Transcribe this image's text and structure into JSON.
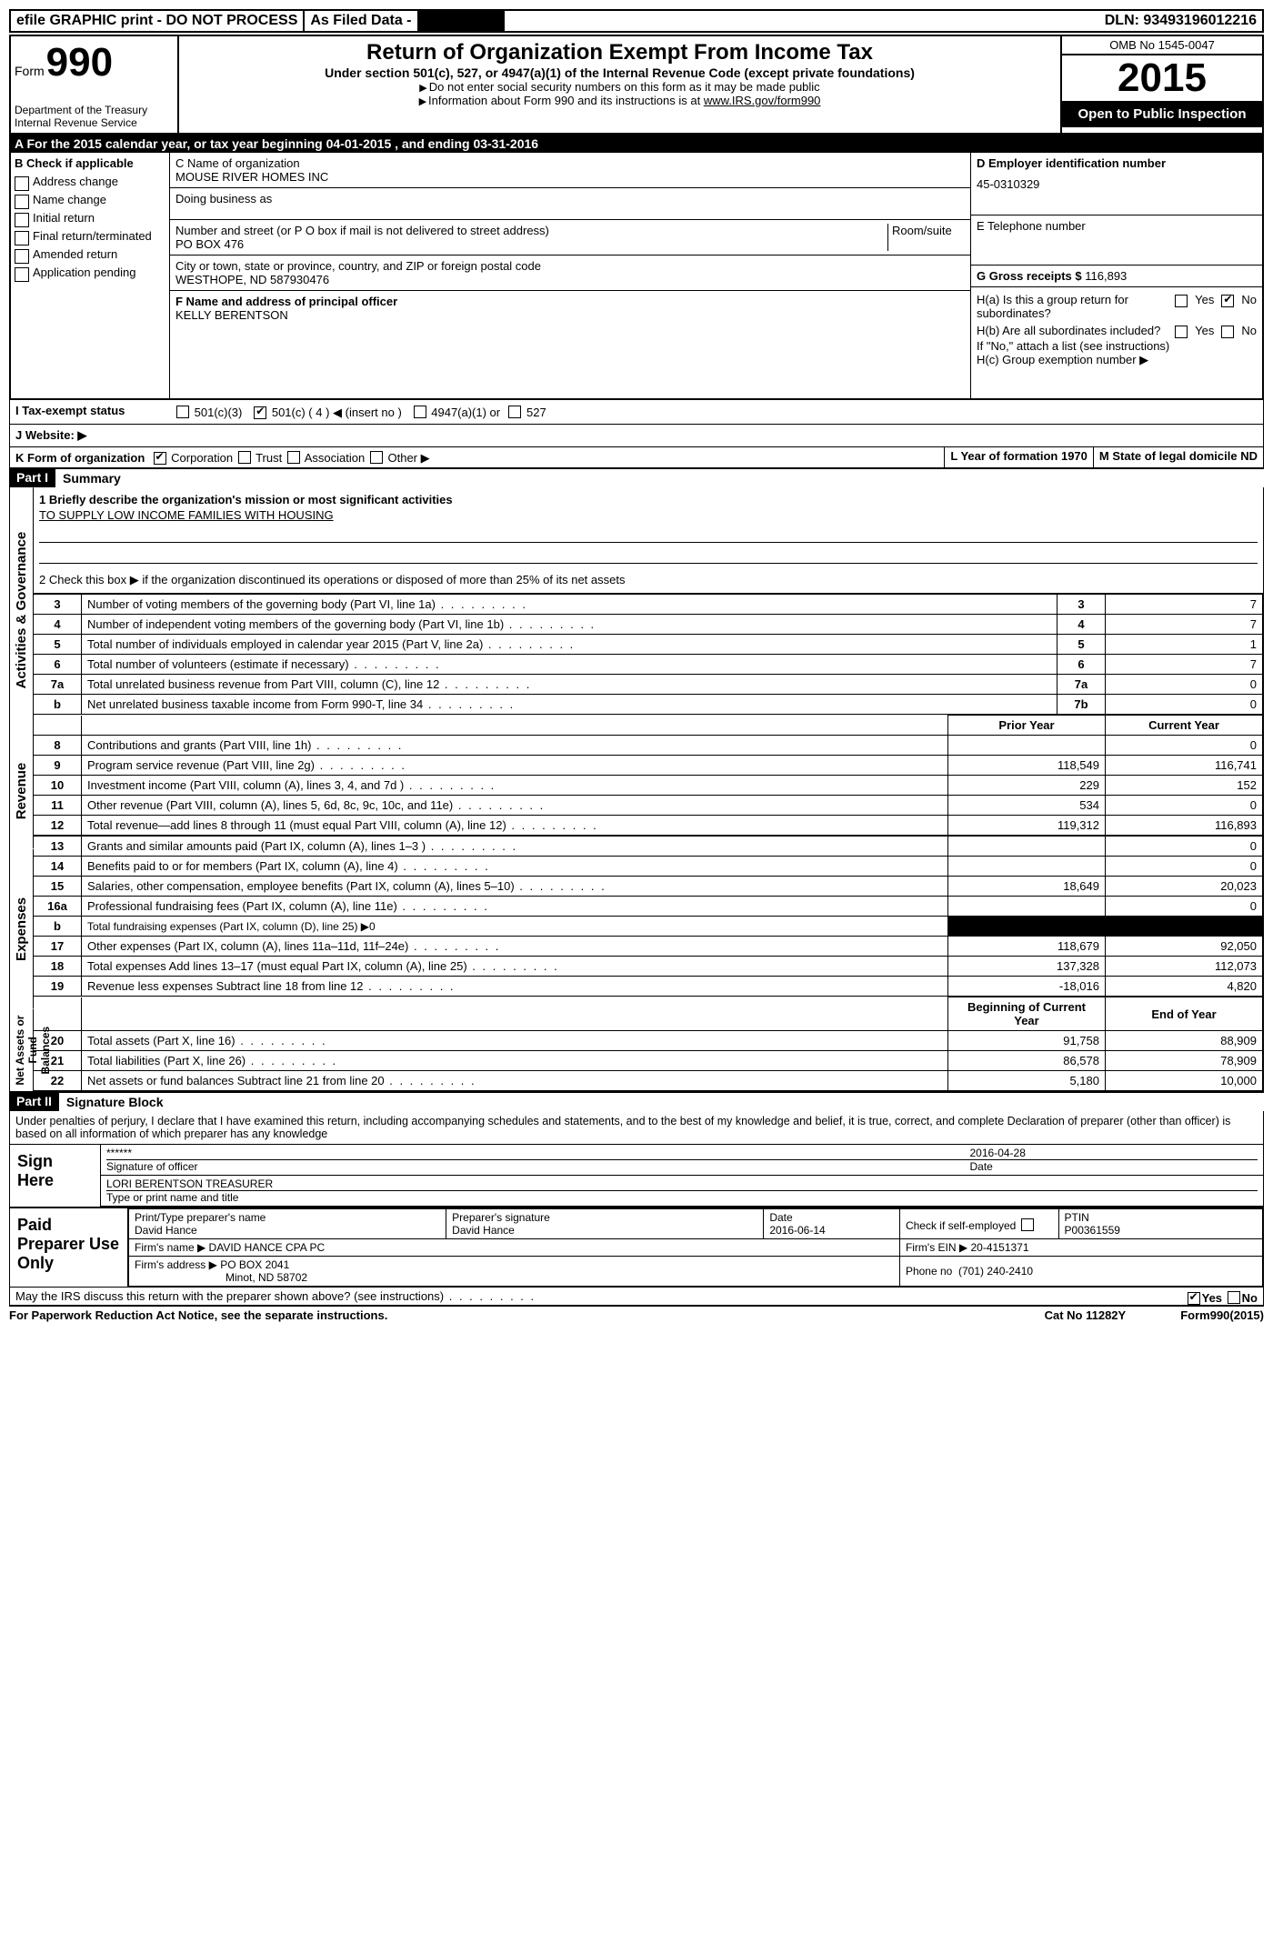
{
  "topbar": {
    "efile": "efile GRAPHIC print - DO NOT PROCESS",
    "asfiled": "As Filed Data -",
    "dln_label": "DLN:",
    "dln": "93493196012216"
  },
  "header": {
    "form_word": "Form",
    "form_num": "990",
    "dept": "Department of the Treasury",
    "irs": "Internal Revenue Service",
    "title": "Return of Organization Exempt From Income Tax",
    "sub": "Under section 501(c), 527, or 4947(a)(1) of the Internal Revenue Code (except private foundations)",
    "instr1": "Do not enter social security numbers on this form as it may be made public",
    "instr2": "Information about Form 990 and its instructions is at ",
    "instr_link": "www.IRS.gov/form990",
    "omb": "OMB No 1545-0047",
    "year": "2015",
    "inspect": "Open to Public Inspection"
  },
  "sectionA": "A   For the 2015 calendar year, or tax year beginning 04-01-2015    , and ending 03-31-2016",
  "colB": {
    "label": "B  Check if applicable",
    "items": [
      "Address change",
      "Name change",
      "Initial return",
      "Final return/terminated",
      "Amended return",
      "Application pending"
    ]
  },
  "colC": {
    "name_label": "C Name of organization",
    "name": "MOUSE RIVER HOMES INC",
    "dba_label": "Doing business as",
    "street_label": "Number and street (or P O  box if mail is not delivered to street address)",
    "room_label": "Room/suite",
    "street": "PO BOX 476",
    "city_label": "City or town, state or province, country, and ZIP or foreign postal code",
    "city": "WESTHOPE, ND  587930476",
    "f_label": "F    Name and address of principal officer",
    "officer": "KELLY BERENTSON"
  },
  "colD": {
    "d_label": "D Employer identification number",
    "ein": "45-0310329",
    "e_label": "E Telephone number",
    "g_label": "G Gross receipts $",
    "g_val": "116,893",
    "ha": "H(a)  Is this a group return for subordinates?",
    "hb": "H(b)  Are all subordinates included?",
    "hb_note": "If \"No,\" attach a list  (see instructions)",
    "hc": "H(c)  Group exemption number ▶",
    "yes": "Yes",
    "no": "No"
  },
  "rowI": {
    "label": "I   Tax-exempt status",
    "opts": [
      "501(c)(3)",
      "501(c) ( 4 ) ◀ (insert no )",
      "4947(a)(1) or",
      "527"
    ]
  },
  "rowJ": "J   Website: ▶",
  "rowK": {
    "k": "K Form of organization",
    "opts": [
      "Corporation",
      "Trust",
      "Association",
      "Other ▶"
    ],
    "l": "L Year of formation  1970",
    "m": "M State of legal domicile  ND"
  },
  "part1": {
    "num": "Part I",
    "title": "Summary"
  },
  "summary": {
    "q1_label": "1 Briefly describe the organization's mission or most significant activities",
    "q1_text": "TO SUPPLY LOW INCOME FAMILIES WITH HOUSING",
    "q2": "2  Check this box ▶     if the organization discontinued its operations or disposed of more than 25% of its net assets",
    "vlabels": [
      "Activities & Governance",
      "Revenue",
      "Expenses",
      "Net Assets or Fund Balances"
    ],
    "col_prior": "Prior Year",
    "col_current": "Current Year",
    "col_boy": "Beginning of Current Year",
    "col_eoy": "End of Year",
    "rows_gov": [
      {
        "n": "3",
        "t": "Number of voting members of the governing body (Part VI, line 1a)",
        "c": "3",
        "v": "7"
      },
      {
        "n": "4",
        "t": "Number of independent voting members of the governing body (Part VI, line 1b)",
        "c": "4",
        "v": "7"
      },
      {
        "n": "5",
        "t": "Total number of individuals employed in calendar year 2015 (Part V, line 2a)",
        "c": "5",
        "v": "1"
      },
      {
        "n": "6",
        "t": "Total number of volunteers (estimate if necessary)",
        "c": "6",
        "v": "7"
      },
      {
        "n": "7a",
        "t": "Total unrelated business revenue from Part VIII, column (C), line 12",
        "c": "7a",
        "v": "0"
      },
      {
        "n": "b",
        "t": "Net unrelated business taxable income from Form 990-T, line 34",
        "c": "7b",
        "v": "0"
      }
    ],
    "rows_rev": [
      {
        "n": "8",
        "t": "Contributions and grants (Part VIII, line 1h)",
        "p": "",
        "c": "0"
      },
      {
        "n": "9",
        "t": "Program service revenue (Part VIII, line 2g)",
        "p": "118,549",
        "c": "116,741"
      },
      {
        "n": "10",
        "t": "Investment income (Part VIII, column (A), lines 3, 4, and 7d )",
        "p": "229",
        "c": "152"
      },
      {
        "n": "11",
        "t": "Other revenue (Part VIII, column (A), lines 5, 6d, 8c, 9c, 10c, and 11e)",
        "p": "534",
        "c": "0"
      },
      {
        "n": "12",
        "t": "Total revenue—add lines 8 through 11 (must equal Part VIII, column (A), line 12)",
        "p": "119,312",
        "c": "116,893"
      }
    ],
    "rows_exp": [
      {
        "n": "13",
        "t": "Grants and similar amounts paid (Part IX, column (A), lines 1–3 )",
        "p": "",
        "c": "0"
      },
      {
        "n": "14",
        "t": "Benefits paid to or for members (Part IX, column (A), line 4)",
        "p": "",
        "c": "0"
      },
      {
        "n": "15",
        "t": "Salaries, other compensation, employee benefits (Part IX, column (A), lines 5–10)",
        "p": "18,649",
        "c": "20,023"
      },
      {
        "n": "16a",
        "t": "Professional fundraising fees (Part IX, column (A), line 11e)",
        "p": "",
        "c": "0"
      },
      {
        "n": "b",
        "t": "Total fundraising expenses (Part IX, column (D), line 25) ▶0",
        "p": "BLACK",
        "c": "BLACK"
      },
      {
        "n": "17",
        "t": "Other expenses (Part IX, column (A), lines 11a–11d, 11f–24e)",
        "p": "118,679",
        "c": "92,050"
      },
      {
        "n": "18",
        "t": "Total expenses  Add lines 13–17 (must equal Part IX, column (A), line 25)",
        "p": "137,328",
        "c": "112,073"
      },
      {
        "n": "19",
        "t": "Revenue less expenses  Subtract line 18 from line 12",
        "p": "-18,016",
        "c": "4,820"
      }
    ],
    "rows_net": [
      {
        "n": "20",
        "t": "Total assets (Part X, line 16)",
        "p": "91,758",
        "c": "88,909"
      },
      {
        "n": "21",
        "t": "Total liabilities (Part X, line 26)",
        "p": "86,578",
        "c": "78,909"
      },
      {
        "n": "22",
        "t": "Net assets or fund balances  Subtract line 21 from line 20",
        "p": "5,180",
        "c": "10,000"
      }
    ]
  },
  "part2": {
    "num": "Part II",
    "title": "Signature Block"
  },
  "sig": {
    "intro": "Under penalties of perjury, I declare that I have examined this return, including accompanying schedules and statements, and to the best of my knowledge and belief, it is true, correct, and complete  Declaration of preparer (other than officer) is based on all information of which preparer has any knowledge",
    "sign_here": "Sign Here",
    "stars": "******",
    "sig_of_officer": "Signature of officer",
    "date_label": "Date",
    "date": "2016-04-28",
    "officer_name": "LORI BERENTSON TREASURER",
    "type_label": "Type or print name and title"
  },
  "prep": {
    "label": "Paid Preparer Use Only",
    "print_label": "Print/Type preparer's name",
    "preparer": "David Hance",
    "sig_label": "Preparer's signature",
    "prep_sig": "David Hance",
    "date_label": "Date",
    "date": "2016-06-14",
    "check_label": "Check      if self-employed",
    "ptin_label": "PTIN",
    "ptin": "P00361559",
    "firm_label": "Firm's name     ▶",
    "firm": "DAVID HANCE CPA PC",
    "ein_label": "Firm's EIN ▶",
    "ein": "20-4151371",
    "addr_label": "Firm's address ▶",
    "addr1": "PO BOX 2041",
    "addr2": "Minot, ND  58702",
    "phone_label": "Phone no",
    "phone": "(701) 240-2410"
  },
  "discuss": "May the IRS discuss this return with the preparer shown above? (see instructions)",
  "discuss_yes": "Yes",
  "discuss_no": "No",
  "footer": {
    "left": "For Paperwork Reduction Act Notice, see the separate instructions.",
    "mid": "Cat No  11282Y",
    "right": "Form990(2015)"
  }
}
